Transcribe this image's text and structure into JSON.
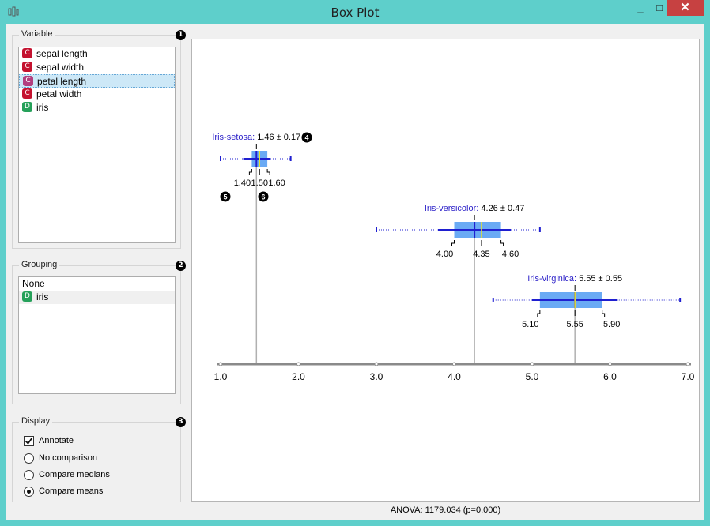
{
  "window": {
    "title": "Box Plot",
    "minimize": "_",
    "maximize": "□",
    "close": "✕"
  },
  "variable_box": {
    "title": "Variable",
    "badge": "1",
    "items": [
      {
        "type": "C",
        "label": "sepal length",
        "color": "#c4122f"
      },
      {
        "type": "C",
        "label": "sepal width",
        "color": "#c4122f"
      },
      {
        "type": "C",
        "label": "petal length",
        "color": "#b23f7f",
        "selected": true
      },
      {
        "type": "C",
        "label": "petal width",
        "color": "#c4122f"
      },
      {
        "type": "D",
        "label": "iris",
        "color": "#26a15a"
      }
    ]
  },
  "grouping_box": {
    "title": "Grouping",
    "badge": "2",
    "items": [
      {
        "type": "",
        "label": "None"
      },
      {
        "type": "D",
        "label": "iris",
        "color": "#26a15a",
        "selected": true
      }
    ]
  },
  "display_box": {
    "title": "Display",
    "badge": "3",
    "annotate_label": "Annotate",
    "annotate_checked": true,
    "options": [
      "No comparison",
      "Compare medians",
      "Compare means"
    ],
    "selected_option": "Compare means"
  },
  "plot": {
    "badges": {
      "mean_label": "4",
      "quartile": "5",
      "median": "6"
    },
    "axis_ticks": [
      "1.0",
      "2.0",
      "3.0",
      "4.0",
      "5.0",
      "6.0",
      "7.0"
    ],
    "groups": [
      {
        "name": "Iris-setosa",
        "stat": "1.46 ± 0.17",
        "mean": 1.46,
        "sd": 0.17,
        "min": 1.0,
        "max": 1.9,
        "q1": 1.4,
        "median": 1.5,
        "q3": 1.6,
        "q1_label": "1.40",
        "median_label": "1.50",
        "q3_label": "1.60"
      },
      {
        "name": "Iris-versicolor",
        "stat": "4.26 ± 0.47",
        "mean": 4.26,
        "sd": 0.47,
        "min": 3.0,
        "max": 5.1,
        "q1": 4.0,
        "median": 4.35,
        "q3": 4.6,
        "q1_label": "4.00",
        "median_label": "4.35",
        "q3_label": "4.60"
      },
      {
        "name": "Iris-virginica",
        "stat": "5.55 ± 0.55",
        "mean": 5.55,
        "sd": 0.55,
        "min": 4.5,
        "max": 6.9,
        "q1": 5.1,
        "median": 5.55,
        "q3": 5.9,
        "q1_label": "5.10",
        "median_label": "5.55",
        "q3_label": "5.90"
      }
    ],
    "colors": {
      "box": "#6aaaf4",
      "mean_line": "#1f1fd0",
      "label": "#2a1fc8",
      "median_marker": "#e7e22d"
    }
  },
  "status": {
    "text": "ANOVA: 1179.034 (p=0.000)"
  }
}
